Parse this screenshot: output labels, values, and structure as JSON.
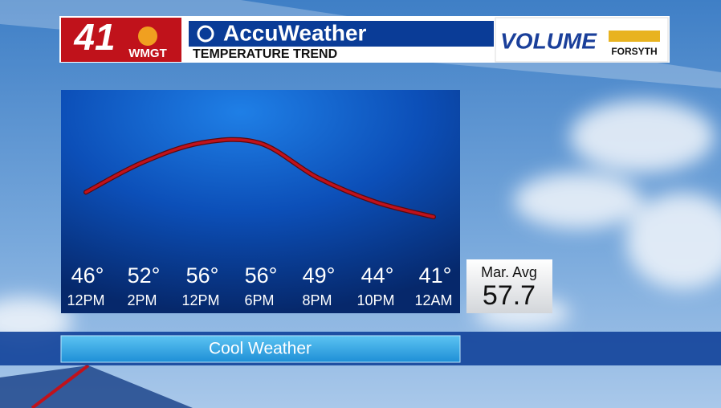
{
  "header": {
    "channel": "41",
    "station": "WMGT",
    "brand": "AccuWeather",
    "sponsor": "VOLUME",
    "sponsor_sub": "FORSYTH"
  },
  "chart_data": {
    "type": "line",
    "title": "TEMPERATURE TREND",
    "categories": [
      "12PM",
      "2PM",
      "12PM",
      "6PM",
      "8PM",
      "10PM",
      "12AM"
    ],
    "values": [
      46,
      52,
      56,
      56,
      49,
      44,
      41
    ],
    "value_labels": [
      "46°",
      "52°",
      "56°",
      "56°",
      "49°",
      "44°",
      "41°"
    ],
    "color": "#c0121b"
  },
  "average": {
    "label": "Mar. Avg",
    "value": "57.7"
  },
  "caption": "Cool Weather"
}
